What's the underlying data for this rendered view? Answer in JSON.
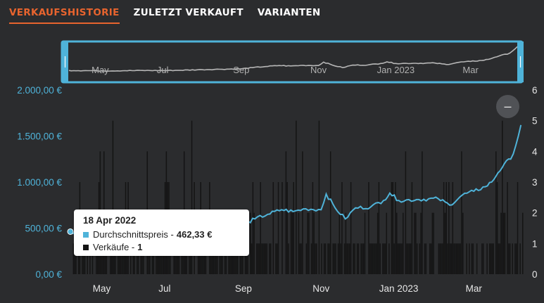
{
  "tabs": [
    {
      "label": "VERKAUFSHISTORIE",
      "active": true
    },
    {
      "label": "ZULETZT VERKAUFT",
      "active": false
    },
    {
      "label": "VARIANTEN",
      "active": false
    }
  ],
  "reset_zoom": {
    "icon": "minus-icon",
    "label": "–"
  },
  "tooltip": {
    "date": "18 Apr 2022",
    "price_label": "Durchschnittspreis - ",
    "price_value": "462,33 €",
    "sales_label": "Verkäufe - ",
    "sales_value": "1"
  },
  "colors": {
    "price": "#4fb3d9",
    "sales": "#141414",
    "accent": "#e8642e",
    "background": "#2b2c2e"
  },
  "chart_data": {
    "type": "line",
    "x_tick_labels": [
      "May",
      "Jul",
      "Sep",
      "Nov",
      "Jan 2023",
      "Mar"
    ],
    "x_tick_dates": [
      "2022-05-01",
      "2022-07-01",
      "2022-09-01",
      "2022-11-01",
      "2023-01-01",
      "2023-03-01"
    ],
    "x_range": [
      "2022-04-18",
      "2023-04-08"
    ],
    "y_left_tick_labels": [
      "0,00 €",
      "500,00 €",
      "1.000,00 €",
      "1.500,00 €",
      "2.000,00 €"
    ],
    "y_left_ticks": [
      0,
      500,
      1000,
      1500,
      2000
    ],
    "y_left_range": [
      0,
      2000
    ],
    "y_right_ticks": [
      0,
      1,
      2,
      3,
      4,
      5,
      6
    ],
    "y_right_range": [
      0,
      6
    ],
    "grid": false,
    "series": [
      {
        "name": "Durchschnittspreis",
        "axis": "left",
        "kind": "line",
        "points": [
          [
            "2022-04-18",
            462
          ],
          [
            "2022-05-01",
            455
          ],
          [
            "2022-05-15",
            440
          ],
          [
            "2022-06-01",
            450
          ],
          [
            "2022-06-15",
            460
          ],
          [
            "2022-07-01",
            455
          ],
          [
            "2022-07-15",
            470
          ],
          [
            "2022-08-01",
            500
          ],
          [
            "2022-08-15",
            520
          ],
          [
            "2022-09-01",
            540
          ],
          [
            "2022-09-10",
            600
          ],
          [
            "2022-09-20",
            650
          ],
          [
            "2022-10-01",
            700
          ],
          [
            "2022-10-10",
            680
          ],
          [
            "2022-10-20",
            710
          ],
          [
            "2022-11-01",
            700
          ],
          [
            "2022-11-05",
            870
          ],
          [
            "2022-11-12",
            720
          ],
          [
            "2022-11-20",
            600
          ],
          [
            "2022-11-28",
            720
          ],
          [
            "2022-12-10",
            730
          ],
          [
            "2022-12-20",
            800
          ],
          [
            "2022-12-25",
            880
          ],
          [
            "2023-01-01",
            800
          ],
          [
            "2023-01-15",
            810
          ],
          [
            "2023-02-01",
            820
          ],
          [
            "2023-02-10",
            750
          ],
          [
            "2023-02-20",
            860
          ],
          [
            "2023-03-01",
            900
          ],
          [
            "2023-03-10",
            950
          ],
          [
            "2023-03-15",
            1000
          ],
          [
            "2023-03-20",
            1100
          ],
          [
            "2023-03-25",
            1200
          ],
          [
            "2023-03-30",
            1250
          ],
          [
            "2023-04-03",
            1400
          ],
          [
            "2023-04-07",
            1620
          ]
        ]
      },
      {
        "name": "Verkäufe",
        "axis": "right",
        "kind": "bar",
        "values_range": [
          0,
          5
        ],
        "note_points": [
          [
            "2022-04-18",
            1
          ]
        ]
      }
    ]
  }
}
